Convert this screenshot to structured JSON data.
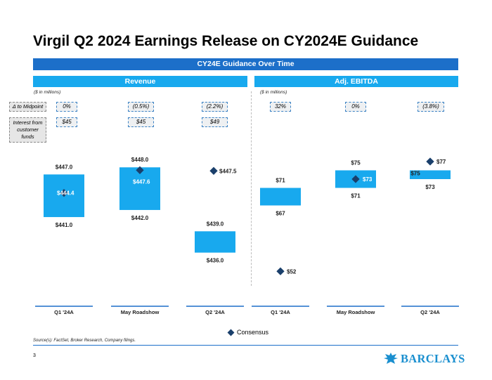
{
  "title": "Virgil Q2 2024 Earnings Release on CY2024E Guidance",
  "banner": "CY24E Guidance Over Time",
  "revenue": {
    "header": "Revenue",
    "units": "($ in millions)",
    "midpoint_label": "Δ to Midpoint",
    "interest_label": "Interest from customer funds",
    "midpoint_values": [
      "0%",
      "(0.5%)",
      "(2.2%)"
    ],
    "interest_values": [
      "$45",
      "$45",
      "$49"
    ]
  },
  "ebitda": {
    "header": "Adj. EBITDA",
    "units": "($ in millions)",
    "midpoint_values": [
      "32%",
      "0%",
      "(3.8%)"
    ]
  },
  "chart_data": [
    {
      "type": "floating-bar",
      "title": "Revenue",
      "ylabel": "($ in millions)",
      "categories": [
        "Q1 '24A",
        "May Roadshow",
        "Q2 '24A"
      ],
      "low": [
        441.0,
        442.0,
        436.0
      ],
      "high": [
        447.0,
        448.0,
        439.0
      ],
      "consensus": [
        444.4,
        447.6,
        447.5
      ],
      "low_labels": [
        "$441.0",
        "$442.0",
        "$436.0"
      ],
      "high_labels": [
        "$447.0",
        "$448.0",
        "$439.0"
      ],
      "consensus_labels": [
        "$444.4",
        "$447.6",
        "$447.5"
      ],
      "ylim": [
        433,
        450
      ]
    },
    {
      "type": "floating-bar",
      "title": "Adj. EBITDA",
      "ylabel": "($ in millions)",
      "categories": [
        "Q1 '24A",
        "May Roadshow",
        "Q2 '24A"
      ],
      "low": [
        67,
        71,
        73
      ],
      "high": [
        71,
        75,
        75
      ],
      "consensus": [
        52,
        73,
        77
      ],
      "low_labels": [
        "$67",
        "$71",
        "$73"
      ],
      "high_labels": [
        "$71",
        "$75",
        "$75"
      ],
      "consensus_labels": [
        "$52",
        "$73",
        "$77"
      ],
      "ylim": [
        49,
        81
      ]
    }
  ],
  "legend": {
    "label": "Consensus"
  },
  "source": "Source(s): FactSet, Broker Research, Company filings.",
  "page_number": "3",
  "logo": {
    "text": "BARCLAYS"
  },
  "colors": {
    "banner": "#1c6fc9",
    "section_header": "#18a9ee",
    "bar": "#18a9ee",
    "consensus_marker": "#1a3f6b",
    "axis_line": "#1c6fc9"
  }
}
